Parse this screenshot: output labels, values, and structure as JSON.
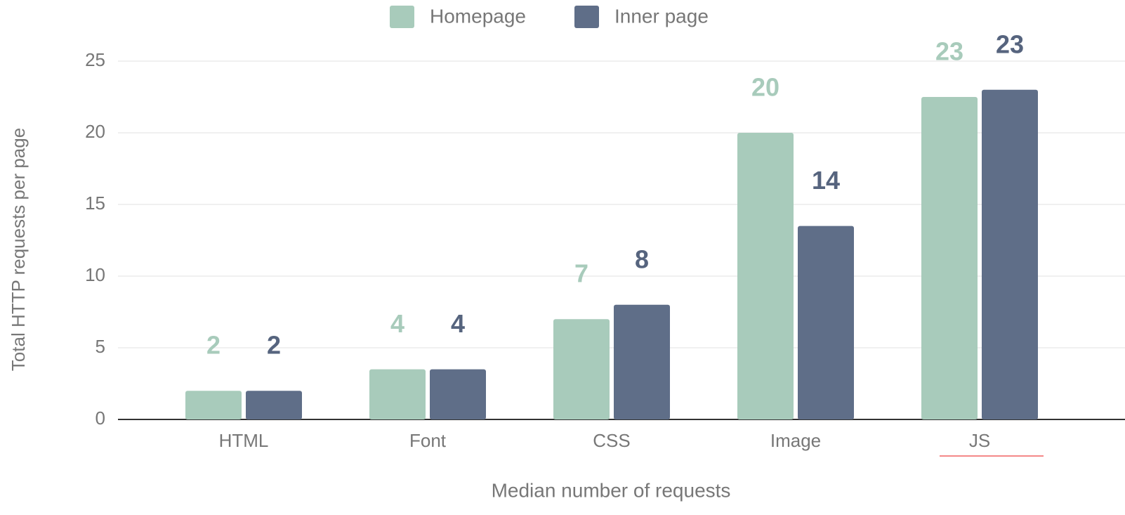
{
  "chart_data": {
    "type": "bar",
    "categories": [
      "HTML",
      "Font",
      "CSS",
      "Image",
      "JS"
    ],
    "series": [
      {
        "name": "Homepage",
        "color": "#a8cbbb",
        "values": [
          2,
          3.5,
          7,
          20,
          22.5
        ],
        "value_labels": [
          "2",
          "4",
          "7",
          "20",
          "23"
        ]
      },
      {
        "name": "Inner page",
        "color": "#5f6e88",
        "values": [
          2,
          3.5,
          8,
          13.5,
          23
        ],
        "value_labels": [
          "2",
          "4",
          "8",
          "14",
          "23"
        ]
      }
    ],
    "ylim": [
      0,
      25
    ],
    "yticks": [
      0,
      5,
      10,
      15,
      20,
      25
    ],
    "ylabel": "Total HTTP requests per page",
    "xlabel": "Median number of requests",
    "grid": true,
    "legend": "top"
  }
}
